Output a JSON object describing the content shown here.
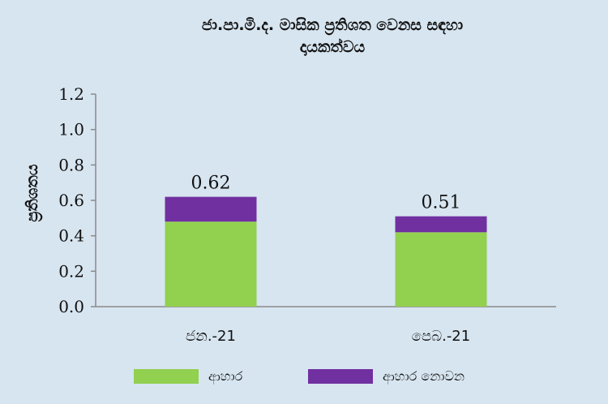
{
  "chart_data": {
    "type": "bar",
    "stacked": true,
    "title_lines": [
      "ජා.පා.මි.ද. මාසික ප්‍රතිශත වෙනස සඳහා",
      "දායකත්වය"
    ],
    "ylabel": "ප්‍රතිශතය",
    "categories": [
      "ජන.-21",
      "පෙබ.-21"
    ],
    "series": [
      {
        "name": "ආහාර",
        "values": [
          0.48,
          0.42
        ],
        "color": "#92d050"
      },
      {
        "name": "ආහාර නොවන",
        "values": [
          0.14,
          0.09
        ],
        "color": "#7030a0"
      }
    ],
    "totals": [
      "0.62",
      "0.51"
    ],
    "ylim": [
      0,
      1.2
    ],
    "yticks": [
      "0.0",
      "0.2",
      "0.4",
      "0.6",
      "0.8",
      "1.0",
      "1.2"
    ],
    "grid": false,
    "legend_position": "bottom"
  }
}
